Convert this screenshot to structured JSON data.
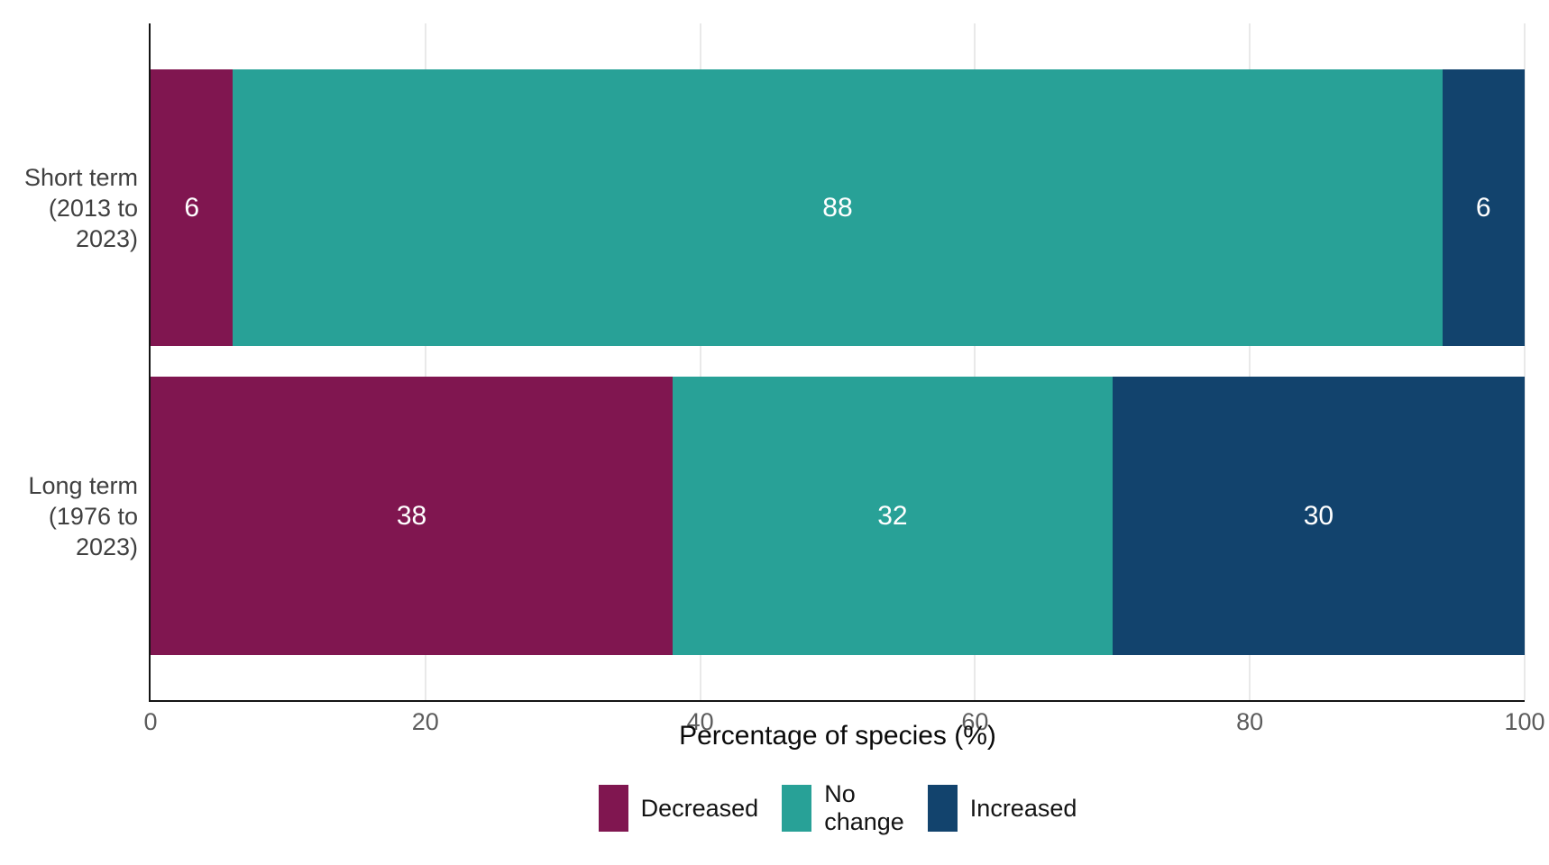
{
  "chart_data": {
    "type": "bar",
    "orientation": "horizontal",
    "stacked": true,
    "title": "",
    "xlabel": "Percentage of species (%)",
    "ylabel": "",
    "xlim": [
      0,
      100
    ],
    "xticks": [
      0,
      20,
      40,
      60,
      80,
      100
    ],
    "grid": true,
    "legend_position": "bottom",
    "categories": [
      "Short term\n(2013 to\n2023)",
      "Long term\n(1976 to\n2023)"
    ],
    "series": [
      {
        "name": "Decreased",
        "legend_label": "Decreased",
        "color": "#801650",
        "values": [
          6,
          38
        ]
      },
      {
        "name": "No change",
        "legend_label": "No\nchange",
        "color": "#28A197",
        "values": [
          88,
          32
        ]
      },
      {
        "name": "Increased",
        "legend_label": "Increased",
        "color": "#12436D",
        "values": [
          6,
          30
        ]
      }
    ]
  },
  "style_colors": {
    "axis_line": "#141414",
    "gridline": "#e9e9e9",
    "tick_label": "#5c5c5c",
    "category_label": "#404040",
    "value_label": "#ffffff",
    "background": "#ffffff"
  }
}
